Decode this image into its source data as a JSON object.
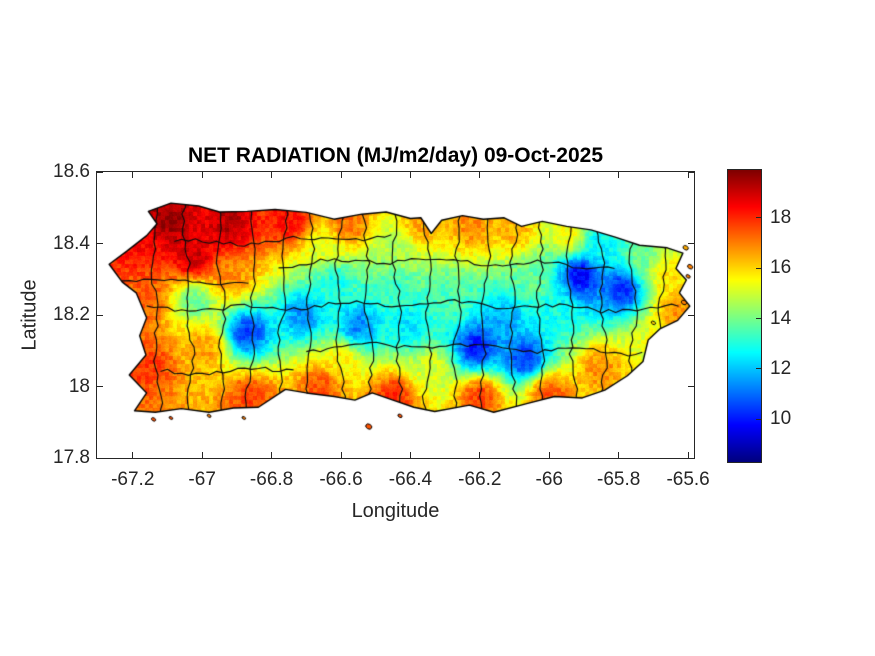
{
  "chart": {
    "title": "NET RADIATION (MJ/m2/day) 09-Oct-2025",
    "xlabel": "Longitude",
    "ylabel": "Latitude"
  },
  "style": {
    "text_color": "#262626",
    "title_color": "#000000",
    "axis_color": "#262626",
    "boundary_color": "#0d0d0d",
    "background": "#ffffff"
  },
  "chart_data": {
    "type": "heatmap",
    "title": "NET RADIATION (MJ/m2/day) 09-Oct-2025",
    "xlabel": "Longitude",
    "ylabel": "Latitude",
    "units": "MJ/m2/day",
    "date": "09-Oct-2025",
    "map_region": "Puerto Rico with municipality boundaries",
    "xlim": [
      -67.303,
      -65.583
    ],
    "ylim": [
      17.8,
      18.6
    ],
    "xticks": [
      -67.2,
      -67,
      -66.8,
      -66.6,
      -66.4,
      -66.2,
      -66,
      -65.8,
      -65.6
    ],
    "xtick_labels": [
      "-67.2",
      "-67",
      "-66.8",
      "-66.6",
      "-66.4",
      "-66.2",
      "-66",
      "-65.8",
      "-65.6"
    ],
    "yticks": [
      17.8,
      18,
      18.2,
      18.4,
      18.6
    ],
    "ytick_labels": [
      "17.8",
      "18",
      "18.2",
      "18.4",
      "18.6"
    ],
    "grid": false,
    "colorbar": {
      "colormap": "jet",
      "range": [
        8.3,
        19.9
      ],
      "ticks": [
        10,
        12,
        14,
        16,
        18
      ],
      "tick_labels": [
        "10",
        "12",
        "14",
        "16",
        "18"
      ],
      "position": "right"
    },
    "field_points": [
      [
        -67.1,
        18.46,
        19.6
      ],
      [
        -66.92,
        18.45,
        19.3
      ],
      [
        -67.02,
        18.36,
        19.1
      ],
      [
        -67.18,
        18.4,
        18.4
      ],
      [
        -66.75,
        18.46,
        18.4
      ],
      [
        -66.58,
        18.45,
        17.2
      ],
      [
        -66.36,
        18.46,
        16.7
      ],
      [
        -66.22,
        18.45,
        16.9
      ],
      [
        -66.1,
        18.44,
        16.5
      ],
      [
        -65.94,
        18.42,
        15.6
      ],
      [
        -67.17,
        18.24,
        17.4
      ],
      [
        -67.16,
        18.06,
        17.8
      ],
      [
        -66.99,
        18.11,
        16.6
      ],
      [
        -67.02,
        18.24,
        13.8
      ],
      [
        -66.92,
        18.31,
        16.8
      ],
      [
        -66.87,
        18.15,
        10.4
      ],
      [
        -66.71,
        18.2,
        11.4
      ],
      [
        -66.55,
        18.17,
        11.2
      ],
      [
        -66.62,
        18.29,
        12.9
      ],
      [
        -66.65,
        18.39,
        15.2
      ],
      [
        -66.45,
        18.38,
        14.6
      ],
      [
        -66.45,
        18.27,
        13.2
      ],
      [
        -66.4,
        18.17,
        12.3
      ],
      [
        -66.28,
        18.24,
        13.5
      ],
      [
        -66.21,
        18.11,
        9.9
      ],
      [
        -66.07,
        18.08,
        10.4
      ],
      [
        -66.13,
        18.18,
        11.7
      ],
      [
        -65.99,
        18.21,
        12.9
      ],
      [
        -65.91,
        18.31,
        9.6
      ],
      [
        -65.79,
        18.27,
        10.2
      ],
      [
        -65.86,
        18.4,
        12.6
      ],
      [
        -65.73,
        18.36,
        14.0
      ],
      [
        -65.66,
        18.31,
        15.9
      ],
      [
        -65.63,
        18.21,
        16.9
      ],
      [
        -65.71,
        18.12,
        15.3
      ],
      [
        -65.85,
        18.05,
        16.9
      ],
      [
        -66.0,
        17.98,
        17.5
      ],
      [
        -66.2,
        17.97,
        17.8
      ],
      [
        -66.45,
        17.97,
        18.0
      ],
      [
        -66.66,
        18.0,
        17.6
      ],
      [
        -66.86,
        17.97,
        17.7
      ],
      [
        -66.6,
        18.07,
        15.7
      ],
      [
        -66.34,
        18.05,
        15.1
      ],
      [
        -66.04,
        18.29,
        13.8
      ]
    ],
    "island_outline": [
      [
        -67.155,
        18.49
      ],
      [
        -67.09,
        18.513
      ],
      [
        -67.01,
        18.505
      ],
      [
        -66.95,
        18.488
      ],
      [
        -66.87,
        18.49
      ],
      [
        -66.79,
        18.495
      ],
      [
        -66.7,
        18.487
      ],
      [
        -66.62,
        18.468
      ],
      [
        -66.54,
        18.482
      ],
      [
        -66.47,
        18.488
      ],
      [
        -66.4,
        18.47
      ],
      [
        -66.37,
        18.472
      ],
      [
        -66.34,
        18.428
      ],
      [
        -66.31,
        18.465
      ],
      [
        -66.25,
        18.478
      ],
      [
        -66.19,
        18.468
      ],
      [
        -66.13,
        18.472
      ],
      [
        -66.08,
        18.448
      ],
      [
        -66.02,
        18.462
      ],
      [
        -65.95,
        18.448
      ],
      [
        -65.88,
        18.438
      ],
      [
        -65.81,
        18.418
      ],
      [
        -65.74,
        18.395
      ],
      [
        -65.66,
        18.388
      ],
      [
        -65.615,
        18.373
      ],
      [
        -65.635,
        18.33
      ],
      [
        -65.605,
        18.298
      ],
      [
        -65.625,
        18.262
      ],
      [
        -65.595,
        18.225
      ],
      [
        -65.63,
        18.185
      ],
      [
        -65.68,
        18.162
      ],
      [
        -65.715,
        18.13
      ],
      [
        -65.73,
        18.07
      ],
      [
        -65.775,
        18.03
      ],
      [
        -65.84,
        17.99
      ],
      [
        -65.905,
        17.968
      ],
      [
        -65.985,
        17.972
      ],
      [
        -66.065,
        17.952
      ],
      [
        -66.16,
        17.928
      ],
      [
        -66.23,
        17.948
      ],
      [
        -66.33,
        17.93
      ],
      [
        -66.39,
        17.942
      ],
      [
        -66.45,
        17.962
      ],
      [
        -66.51,
        17.982
      ],
      [
        -66.56,
        17.962
      ],
      [
        -66.62,
        17.972
      ],
      [
        -66.7,
        17.982
      ],
      [
        -66.76,
        17.992
      ],
      [
        -66.838,
        17.942
      ],
      [
        -66.91,
        17.94
      ],
      [
        -66.98,
        17.928
      ],
      [
        -67.06,
        17.938
      ],
      [
        -67.135,
        17.928
      ],
      [
        -67.195,
        17.932
      ],
      [
        -67.16,
        17.982
      ],
      [
        -67.21,
        18.032
      ],
      [
        -67.162,
        18.088
      ],
      [
        -67.18,
        18.142
      ],
      [
        -67.16,
        18.192
      ],
      [
        -67.19,
        18.262
      ],
      [
        -67.23,
        18.292
      ],
      [
        -67.268,
        18.342
      ],
      [
        -67.218,
        18.378
      ],
      [
        -67.16,
        18.422
      ],
      [
        -67.13,
        18.455
      ]
    ],
    "islets": [
      [
        -65.607,
        18.388,
        16.5,
        2.0
      ],
      [
        -65.594,
        18.335,
        17.0,
        2.0
      ],
      [
        -65.6,
        18.308,
        17.0,
        1.5
      ],
      [
        -65.612,
        18.235,
        17.0,
        2.0
      ],
      [
        -65.7,
        18.178,
        16.0,
        1.5
      ],
      [
        -66.52,
        17.888,
        17.5,
        2.4
      ],
      [
        -66.43,
        17.918,
        17.5,
        1.5
      ],
      [
        -67.14,
        17.908,
        17.5,
        1.5
      ],
      [
        -67.09,
        17.912,
        17.5,
        1.2
      ],
      [
        -66.98,
        17.918,
        17.0,
        1.3
      ],
      [
        -66.88,
        17.912,
        17.0,
        1.2
      ]
    ],
    "boundaries": {
      "vertical_lons": [
        -67.13,
        -67.04,
        -66.95,
        -66.86,
        -66.77,
        -66.685,
        -66.6,
        -66.52,
        -66.44,
        -66.355,
        -66.27,
        -66.185,
        -66.1,
        -66.02,
        -65.935,
        -65.85,
        -65.765,
        -65.68
      ],
      "horizontal": [
        {
          "lat": 18.225,
          "lon0": -67.16,
          "lon1": -65.62
        },
        {
          "lat": 18.345,
          "lon0": -66.78,
          "lon1": -65.8
        },
        {
          "lat": 18.105,
          "lon0": -66.7,
          "lon1": -65.72
        },
        {
          "lat": 18.41,
          "lon0": -67.08,
          "lon1": -66.45
        },
        {
          "lat": 18.05,
          "lon0": -67.12,
          "lon1": -66.72
        },
        {
          "lat": 18.3,
          "lon0": -67.25,
          "lon1": -66.85
        }
      ]
    }
  }
}
